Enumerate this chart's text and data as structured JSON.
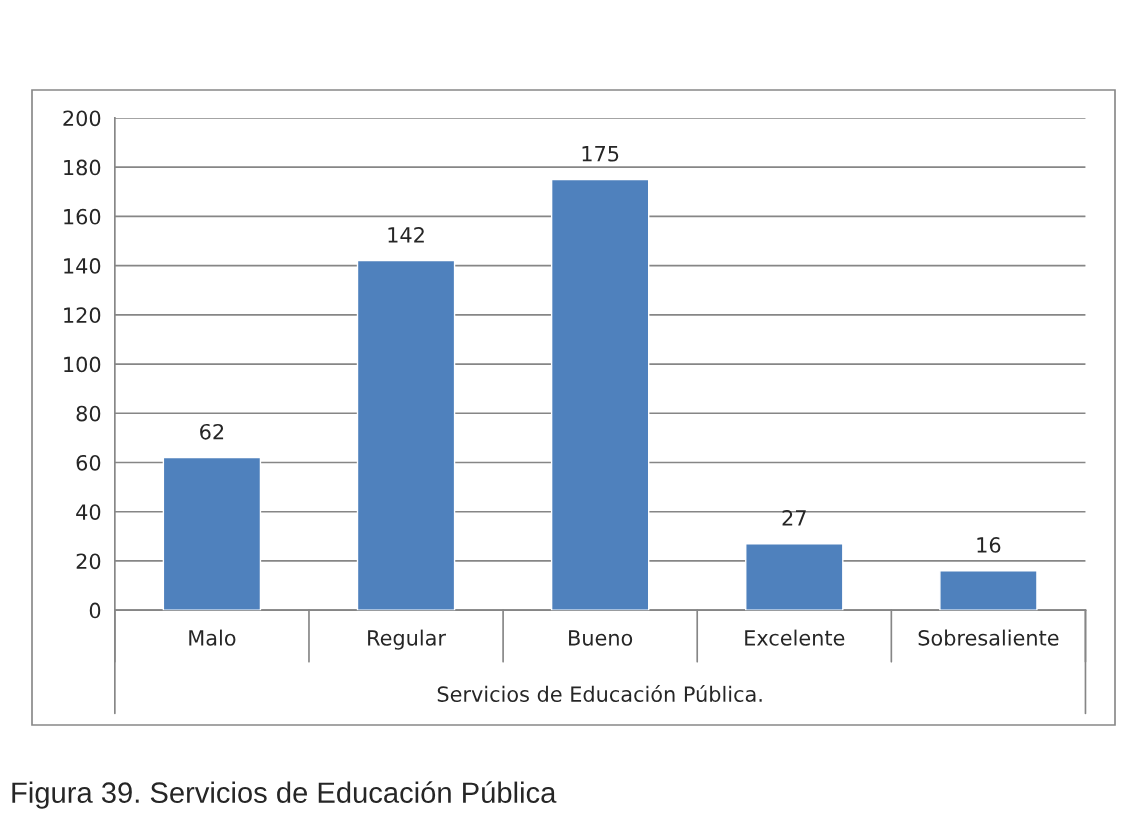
{
  "chart_data": {
    "type": "bar",
    "categories": [
      "Malo",
      "Regular",
      "Bueno",
      "Excelente",
      "Sobresaliente"
    ],
    "values": [
      62,
      142,
      175,
      27,
      16
    ],
    "color": "#4f81bd",
    "ylim": [
      0,
      200
    ],
    "yticks": [
      0,
      20,
      40,
      60,
      80,
      100,
      120,
      140,
      160,
      180,
      200
    ],
    "grid": "y",
    "data_labels": true,
    "xlabel": "Servicios de Educación Pública.",
    "annotations": [
      "Figura 39. Servicios de Educación Pública"
    ]
  }
}
